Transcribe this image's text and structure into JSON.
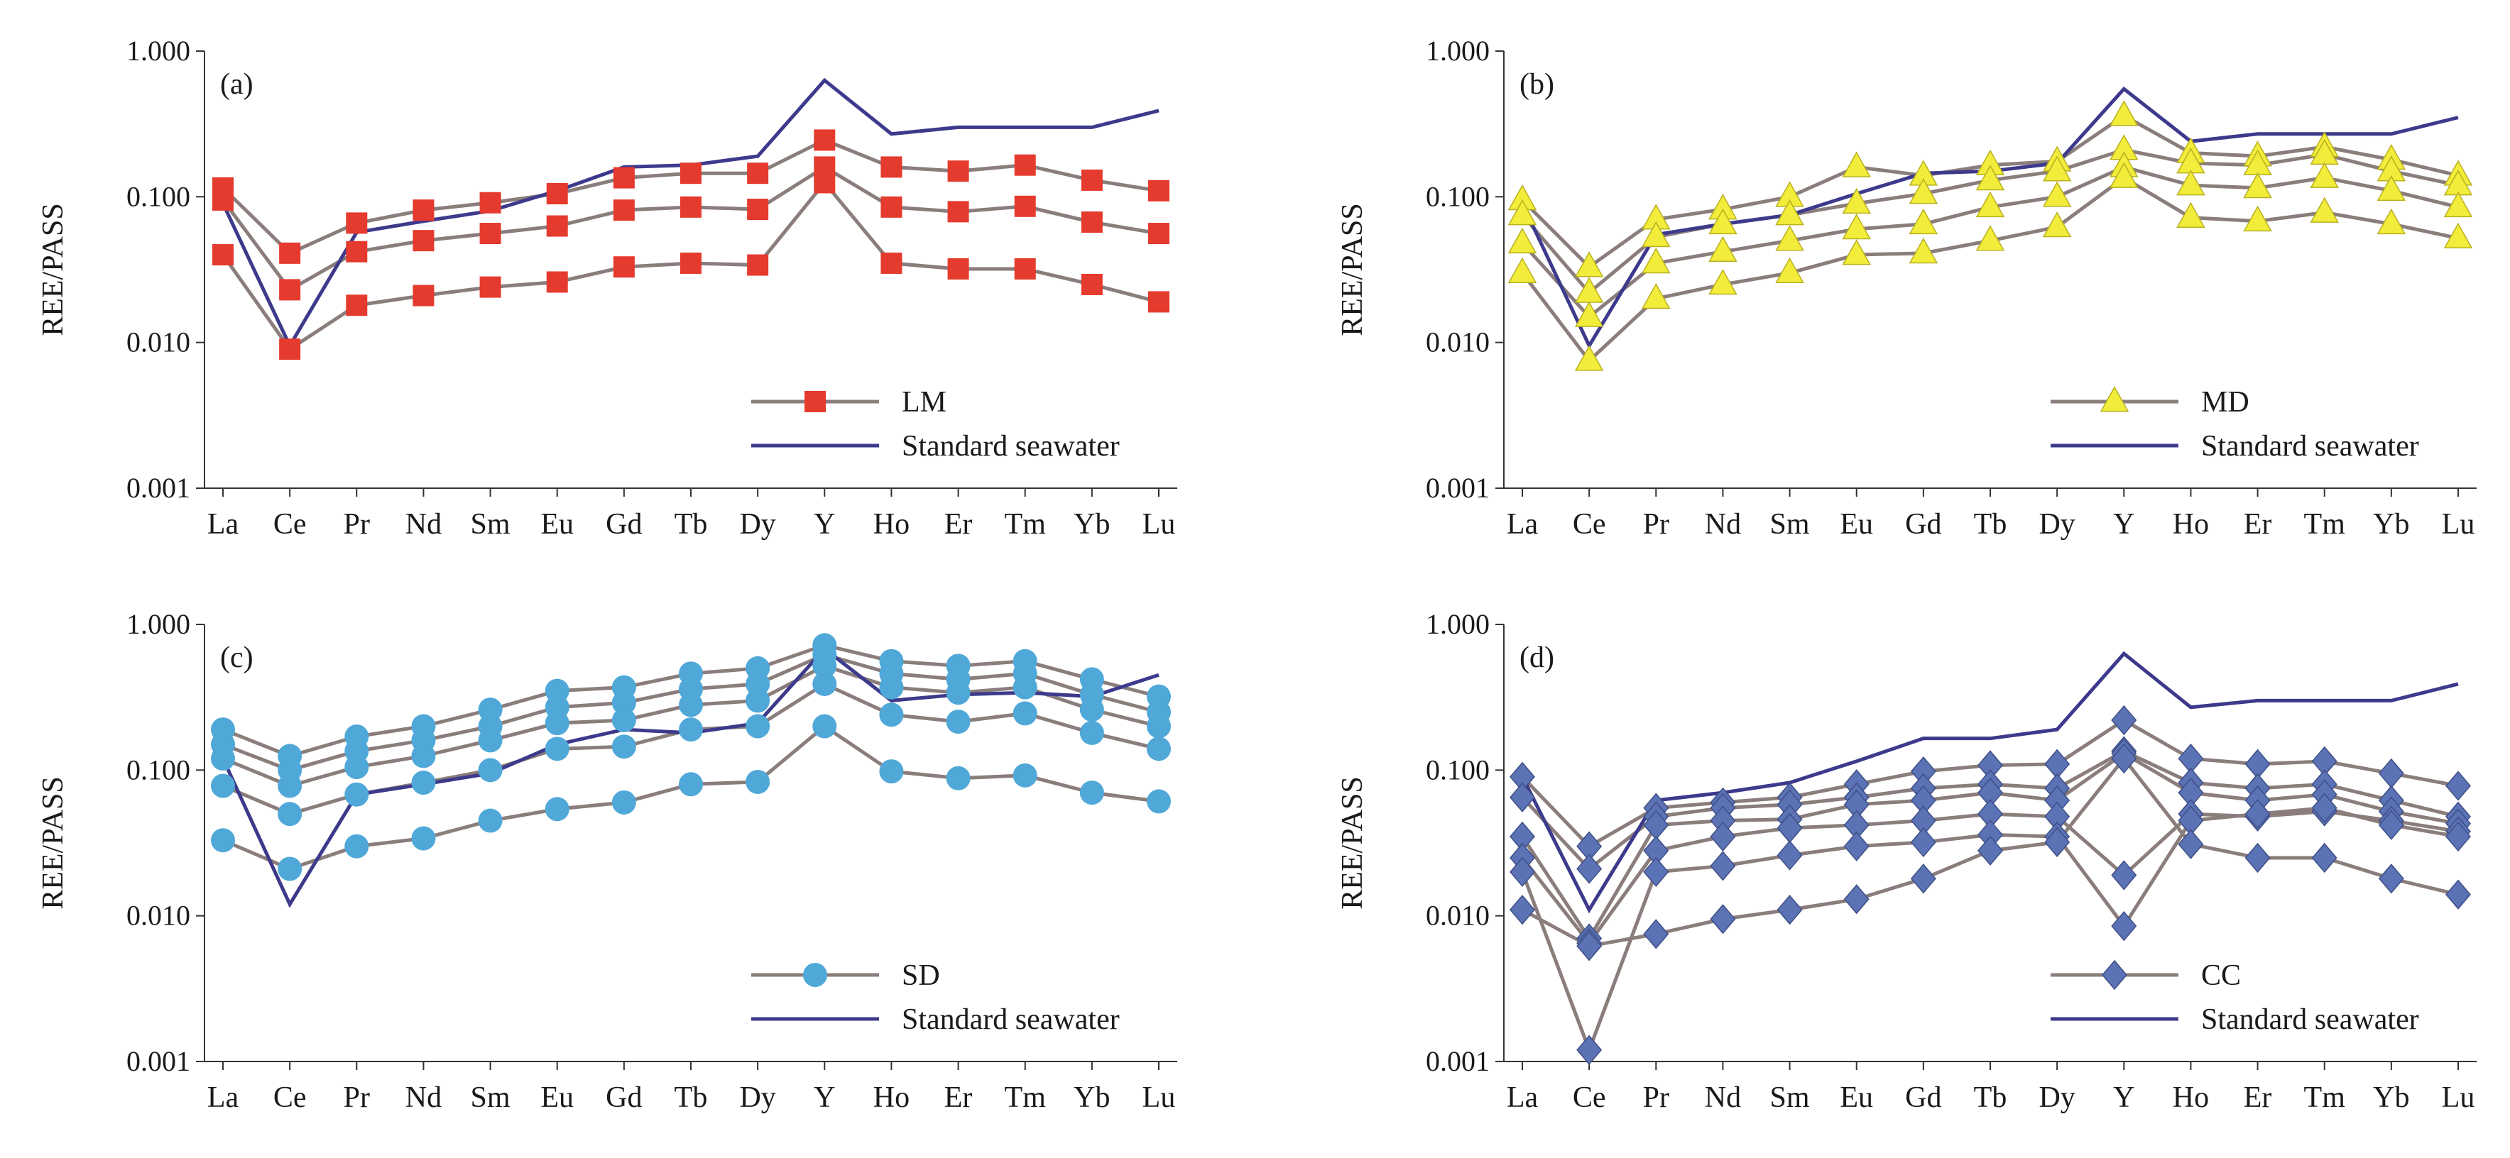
{
  "figure": {
    "categories": [
      "La",
      "Ce",
      "Pr",
      "Nd",
      "Sm",
      "Eu",
      "Gd",
      "Tb",
      "Dy",
      "Y",
      "Ho",
      "Er",
      "Tm",
      "Yb",
      "Lu"
    ],
    "ylabel": "REE/PASS",
    "yticks": [
      "0.001",
      "0.010",
      "0.100",
      "1.000"
    ],
    "colors": {
      "sample_line": "#8a7d7b",
      "seawater_line": "#3d3a8c",
      "axis": "#333333",
      "LM_marker": "#e53a2e",
      "MD_marker": "#f2ec3a",
      "SD_marker": "#4fa8d8",
      "CC_marker": "#5b72b5"
    }
  },
  "chart_data": [
    {
      "type": "line",
      "panel_label": "(a)",
      "ylim": [
        0.001,
        1.0
      ],
      "yscale": "log",
      "grid": false,
      "legend_position": "bottom-right",
      "marker_shape": "square",
      "legend": {
        "sample": "LM",
        "seawater": "Standard seawater"
      },
      "seawater": [
        0.09,
        0.0095,
        0.057,
        0.068,
        0.08,
        0.11,
        0.16,
        0.165,
        0.19,
        0.63,
        0.27,
        0.3,
        0.3,
        0.3,
        0.39
      ],
      "samples": [
        [
          0.115,
          0.041,
          0.066,
          0.081,
          0.091,
          0.105,
          0.135,
          0.145,
          0.145,
          0.245,
          0.16,
          0.15,
          0.165,
          0.13,
          0.11
        ],
        [
          0.095,
          0.023,
          0.042,
          0.05,
          0.056,
          0.063,
          0.081,
          0.085,
          0.082,
          0.16,
          0.085,
          0.079,
          0.086,
          0.067,
          0.056
        ],
        [
          0.04,
          0.009,
          0.018,
          0.021,
          0.024,
          0.026,
          0.033,
          0.035,
          0.034,
          0.125,
          0.035,
          0.032,
          0.032,
          0.025,
          0.019
        ]
      ]
    },
    {
      "type": "line",
      "panel_label": "(b)",
      "ylim": [
        0.001,
        1.0
      ],
      "yscale": "log",
      "grid": false,
      "legend_position": "bottom-right",
      "marker_shape": "triangle",
      "legend": {
        "sample": "MD",
        "seawater": "Standard seawater"
      },
      "seawater": [
        0.09,
        0.0095,
        0.055,
        0.065,
        0.075,
        0.105,
        0.145,
        0.15,
        0.17,
        0.55,
        0.24,
        0.27,
        0.27,
        0.27,
        0.35
      ],
      "samples": [
        [
          0.095,
          0.033,
          0.07,
          0.082,
          0.1,
          0.16,
          0.14,
          0.165,
          0.175,
          0.36,
          0.2,
          0.19,
          0.22,
          0.18,
          0.14
        ],
        [
          0.075,
          0.022,
          0.053,
          0.065,
          0.075,
          0.09,
          0.105,
          0.13,
          0.15,
          0.21,
          0.17,
          0.165,
          0.195,
          0.15,
          0.12
        ],
        [
          0.048,
          0.015,
          0.035,
          0.042,
          0.05,
          0.06,
          0.065,
          0.085,
          0.1,
          0.16,
          0.12,
          0.115,
          0.135,
          0.11,
          0.085
        ],
        [
          0.03,
          0.0075,
          0.02,
          0.025,
          0.03,
          0.04,
          0.041,
          0.05,
          0.062,
          0.135,
          0.072,
          0.068,
          0.078,
          0.065,
          0.052
        ]
      ]
    },
    {
      "type": "line",
      "panel_label": "(c)",
      "ylim": [
        0.001,
        1.0
      ],
      "yscale": "log",
      "grid": false,
      "legend_position": "bottom-right",
      "marker_shape": "circle",
      "legend": {
        "sample": "SD",
        "seawater": "Standard seawater"
      },
      "seawater": [
        0.12,
        0.012,
        0.068,
        0.08,
        0.095,
        0.15,
        0.19,
        0.18,
        0.21,
        0.68,
        0.3,
        0.33,
        0.34,
        0.32,
        0.45
      ],
      "samples": [
        [
          0.19,
          0.125,
          0.17,
          0.2,
          0.26,
          0.35,
          0.37,
          0.46,
          0.5,
          0.72,
          0.56,
          0.52,
          0.56,
          0.42,
          0.32
        ],
        [
          0.15,
          0.1,
          0.135,
          0.16,
          0.2,
          0.27,
          0.29,
          0.36,
          0.39,
          0.62,
          0.46,
          0.42,
          0.46,
          0.33,
          0.25
        ],
        [
          0.12,
          0.078,
          0.105,
          0.125,
          0.16,
          0.21,
          0.22,
          0.28,
          0.3,
          0.52,
          0.37,
          0.34,
          0.37,
          0.26,
          0.2
        ],
        [
          0.078,
          0.05,
          0.068,
          0.082,
          0.1,
          0.14,
          0.145,
          0.19,
          0.2,
          0.39,
          0.24,
          0.215,
          0.245,
          0.18,
          0.14
        ],
        [
          0.033,
          0.021,
          0.03,
          0.034,
          0.045,
          0.054,
          0.06,
          0.08,
          0.083,
          0.2,
          0.098,
          0.088,
          0.092,
          0.07,
          0.061
        ]
      ]
    },
    {
      "type": "line",
      "panel_label": "(d)",
      "ylim": [
        0.001,
        1.0
      ],
      "yscale": "log",
      "grid": false,
      "legend_position": "bottom-right",
      "marker_shape": "diamond",
      "legend": {
        "sample": "CC",
        "seawater": "Standard seawater"
      },
      "seawater": [
        0.09,
        0.011,
        0.062,
        0.07,
        0.082,
        0.115,
        0.165,
        0.165,
        0.19,
        0.63,
        0.27,
        0.3,
        0.3,
        0.3,
        0.39
      ],
      "samples": [
        [
          0.09,
          0.03,
          0.055,
          0.06,
          0.065,
          0.08,
          0.098,
          0.108,
          0.11,
          0.22,
          0.12,
          0.11,
          0.115,
          0.095,
          0.078
        ],
        [
          0.065,
          0.021,
          0.048,
          0.055,
          0.058,
          0.065,
          0.075,
          0.08,
          0.075,
          0.135,
          0.082,
          0.075,
          0.08,
          0.062,
          0.048
        ],
        [
          0.035,
          0.007,
          0.042,
          0.045,
          0.046,
          0.058,
          0.062,
          0.07,
          0.062,
          0.13,
          0.07,
          0.062,
          0.068,
          0.052,
          0.043
        ],
        [
          0.025,
          0.0065,
          0.028,
          0.035,
          0.04,
          0.042,
          0.045,
          0.05,
          0.048,
          0.019,
          0.05,
          0.048,
          0.052,
          0.045,
          0.038
        ],
        [
          0.02,
          0.0012,
          0.02,
          0.022,
          0.026,
          0.03,
          0.032,
          0.036,
          0.035,
          0.0085,
          0.045,
          0.05,
          0.055,
          0.042,
          0.035
        ],
        [
          0.011,
          0.0062,
          0.0075,
          0.0095,
          0.011,
          0.013,
          0.018,
          0.028,
          0.032,
          0.12,
          0.031,
          0.025,
          0.025,
          0.018,
          0.014
        ]
      ]
    }
  ]
}
